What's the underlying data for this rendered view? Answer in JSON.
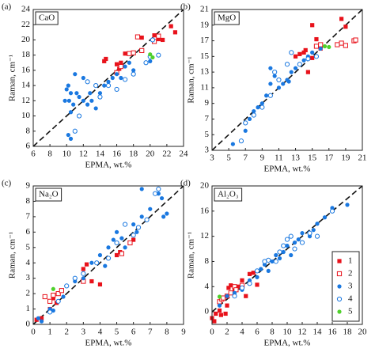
{
  "chart_data": [
    {
      "type": "scatter",
      "panel_label": "(a)",
      "label": "CaO",
      "xlabel": "EPMA, wt.%",
      "ylabel": "Raman, cm⁻¹",
      "xlim": [
        6,
        24
      ],
      "ylim": [
        6,
        24
      ],
      "xticks": [
        6,
        8,
        10,
        12,
        14,
        16,
        18,
        20,
        22,
        24
      ],
      "yticks": [
        6,
        8,
        10,
        12,
        14,
        16,
        18,
        20,
        22,
        24
      ],
      "diagonal": true,
      "series": [
        {
          "color": "#e8121b",
          "marker": "square",
          "filled": true,
          "x": [
            14.5,
            14.7,
            16,
            16.5,
            17,
            19,
            20.5,
            21,
            21.5,
            22.5,
            23,
            16.3
          ],
          "y": [
            17.2,
            17.5,
            16.8,
            17,
            18.2,
            20.3,
            20.6,
            20.1,
            20,
            21.8,
            21,
            16.2
          ]
        },
        {
          "color": "#e8121b",
          "marker": "square",
          "filled": false,
          "x": [
            16,
            17.5,
            18,
            18.5,
            19,
            20.5,
            21,
            16.5
          ],
          "y": [
            15.7,
            18.2,
            18.3,
            20.4,
            18.6,
            19.8,
            20.5,
            16.5
          ]
        },
        {
          "color": "#1a78e0",
          "marker": "circle",
          "filled": true,
          "x": [
            10,
            10.2,
            10.5,
            10.3,
            10.5,
            10.8,
            11,
            11.2,
            11.5,
            12,
            12.5,
            12.8,
            13,
            13.5,
            14,
            14.5,
            15,
            15.5,
            16,
            16.5,
            17,
            17.5,
            18,
            20,
            10.2,
            10.5,
            12,
            9.8
          ],
          "y": [
            13.5,
            14,
            13,
            12,
            10.5,
            11.5,
            15.5,
            13,
            12.5,
            12,
            11.5,
            13,
            12,
            11,
            13,
            14,
            14.5,
            15,
            15.5,
            15,
            16.5,
            17,
            16,
            17.2,
            7.5,
            7,
            15,
            12
          ]
        },
        {
          "color": "#1a78e0",
          "marker": "circle",
          "filled": false,
          "x": [
            11,
            11.5,
            12.5,
            13.5,
            14,
            15,
            16,
            17,
            18,
            19.5,
            20,
            21,
            20.3
          ],
          "y": [
            8,
            10,
            14.5,
            14,
            12.5,
            14,
            13.5,
            14.8,
            15.5,
            17,
            17.8,
            18,
            20
          ]
        },
        {
          "color": "#4fd12c",
          "marker": "circle",
          "filled": true,
          "x": [
            20,
            20.3
          ],
          "y": [
            18.1,
            17.7
          ]
        }
      ]
    },
    {
      "type": "scatter",
      "panel_label": "(b)",
      "label": "MgO",
      "xlabel": "EPMA, wt.%",
      "ylabel": "Raman, cm⁻¹",
      "xlim": [
        3,
        21
      ],
      "ylim": [
        3,
        21
      ],
      "xticks": [
        3,
        5,
        7,
        9,
        11,
        13,
        15,
        17,
        19,
        21
      ],
      "yticks": [
        3,
        5,
        7,
        9,
        11,
        13,
        15,
        17,
        19,
        21
      ],
      "diagonal": true,
      "series": [
        {
          "color": "#e8121b",
          "marker": "square",
          "filled": true,
          "x": [
            13,
            13.5,
            14,
            14.5,
            15,
            15.5,
            15,
            16,
            18.5,
            19,
            14.2
          ],
          "y": [
            15,
            15.3,
            15.5,
            13,
            14.8,
            17.2,
            19,
            16,
            19.8,
            18.8,
            15.8
          ]
        },
        {
          "color": "#e8121b",
          "marker": "square",
          "filled": false,
          "x": [
            15.5,
            16,
            18,
            18.5,
            19,
            20,
            20.2
          ],
          "y": [
            16.3,
            16.5,
            16.5,
            16.7,
            16.4,
            17,
            17.1
          ]
        },
        {
          "color": "#1a78e0",
          "marker": "circle",
          "filled": true,
          "x": [
            5.5,
            7,
            7.5,
            8,
            8.5,
            9,
            9.5,
            10,
            10,
            10.5,
            11,
            11.5,
            12,
            12.2,
            12.5,
            13,
            13.5,
            14,
            14.5,
            15,
            16
          ],
          "y": [
            3.8,
            5.5,
            7,
            8,
            8.5,
            9,
            10,
            11.5,
            13.5,
            12.5,
            11,
            11.5,
            12,
            11.8,
            13,
            13.5,
            14,
            14.5,
            15,
            15.5,
            16
          ]
        },
        {
          "color": "#1a78e0",
          "marker": "circle",
          "filled": false,
          "x": [
            6.5,
            7,
            8,
            9,
            10,
            10.5,
            11,
            12,
            12.5,
            13.5,
            14.5,
            15.5
          ],
          "y": [
            4.2,
            6.5,
            7.5,
            8.5,
            10,
            13,
            12,
            14,
            15.5,
            14,
            14.7,
            15
          ]
        },
        {
          "color": "#4fd12c",
          "marker": "circle",
          "filled": true,
          "x": [
            16.5,
            17
          ],
          "y": [
            16.3,
            16.2
          ]
        }
      ]
    },
    {
      "type": "scatter",
      "panel_label": "(c)",
      "label": "Na₂O",
      "xlabel": "EPMA, wt.%",
      "ylabel": "Raman, cm⁻¹",
      "xlim": [
        0,
        9
      ],
      "ylim": [
        0,
        9
      ],
      "xticks": [
        0,
        1,
        2,
        3,
        4,
        5,
        6,
        7,
        8,
        9
      ],
      "yticks": [
        0,
        1,
        2,
        3,
        4,
        5,
        6,
        7,
        8,
        9
      ],
      "diagonal": true,
      "series": [
        {
          "color": "#e8121b",
          "marker": "square",
          "filled": true,
          "x": [
            0.2,
            0.5,
            1,
            1.2,
            3,
            3.2,
            3.5,
            4,
            5,
            5.2,
            6,
            1.4
          ],
          "y": [
            0.3,
            0.4,
            1,
            1.7,
            3.6,
            3.9,
            2.8,
            2.6,
            4.5,
            4.7,
            5.5,
            1.4
          ]
        },
        {
          "color": "#e8121b",
          "marker": "square",
          "filled": false,
          "x": [
            0.7,
            1,
            1.2,
            1.5,
            1.7,
            3,
            5.3,
            5.8
          ],
          "y": [
            1.8,
            1.5,
            1.9,
            2,
            2.2,
            2.8,
            4.6,
            5.3
          ]
        },
        {
          "color": "#1a78e0",
          "marker": "circle",
          "filled": true,
          "x": [
            0.3,
            0.5,
            1,
            1.2,
            1.8,
            2.5,
            3,
            3.5,
            4,
            4.3,
            4.5,
            4.8,
            5,
            5.3,
            5.5,
            6,
            6.2,
            6.5,
            6.5,
            7,
            7.5,
            7.8,
            8,
            7.7
          ],
          "y": [
            0.4,
            0.2,
            1,
            0.9,
            1.8,
            2.8,
            3,
            4,
            4.5,
            3.8,
            5,
            5.5,
            6,
            5.6,
            5,
            6.5,
            6,
            7,
            8.8,
            7.5,
            8.5,
            7,
            7.2,
            8.2
          ]
        },
        {
          "color": "#1a78e0",
          "marker": "circle",
          "filled": false,
          "x": [
            1,
            1.5,
            2,
            2.5,
            3,
            3.8,
            4.5,
            5,
            5.5,
            6,
            6.3,
            6.8,
            7.5,
            7.3
          ],
          "y": [
            0.8,
            1.5,
            2.5,
            3,
            3.3,
            4,
            4.3,
            5.3,
            6.5,
            5.8,
            6.3,
            6.8,
            8.8,
            8.5
          ]
        },
        {
          "color": "#4fd12c",
          "marker": "circle",
          "filled": true,
          "x": [
            1.2
          ],
          "y": [
            2.3
          ]
        }
      ]
    },
    {
      "type": "scatter",
      "panel_label": "(d)",
      "label": "Al₂O₃",
      "xlabel": "EPMA, wt.%",
      "ylabel": "Raman, cm⁻¹",
      "xlim": [
        0,
        20
      ],
      "ylim": [
        -2,
        20
      ],
      "xticks": [
        0,
        2,
        4,
        6,
        8,
        10,
        12,
        14,
        16,
        18,
        20
      ],
      "yticks": [
        0,
        4,
        8,
        12,
        16,
        20
      ],
      "diagonal": true,
      "legend": "lower right",
      "series": [
        {
          "name": "1",
          "color": "#e8121b",
          "marker": "square",
          "filled": true,
          "x": [
            0,
            0.3,
            0.5,
            1,
            1.2,
            1.8,
            2,
            2.2,
            2.5,
            3,
            3.5,
            4,
            4.5,
            5,
            6,
            5.5
          ],
          "y": [
            -1,
            -1.5,
            -0.3,
            0.2,
            -0.5,
            -0.3,
            1,
            3.8,
            4.2,
            3.5,
            4,
            5,
            2.5,
            6,
            4.3,
            6.2
          ]
        },
        {
          "name": "2",
          "color": "#e8121b",
          "marker": "square",
          "filled": false,
          "x": [
            1,
            1.3,
            1.5,
            2,
            2.5,
            3,
            3.2,
            4
          ],
          "y": [
            1.6,
            2,
            2.2,
            2.5,
            3,
            4,
            3.5,
            4.2
          ]
        },
        {
          "name": "3",
          "color": "#1a78e0",
          "marker": "circle",
          "filled": true,
          "x": [
            1,
            2,
            3,
            4,
            5,
            6,
            6.5,
            7,
            7.5,
            8,
            8.5,
            9,
            9.5,
            10,
            10.5,
            11,
            11.5,
            12,
            13,
            13.5,
            14,
            15,
            16,
            18
          ],
          "y": [
            1,
            2.5,
            3,
            3.5,
            5,
            5.5,
            6.8,
            7.5,
            6.5,
            8,
            9,
            8.5,
            9.5,
            10.5,
            9,
            11,
            11.5,
            12.5,
            12,
            13,
            14,
            15,
            16.5,
            17
          ]
        },
        {
          "name": "4",
          "color": "#1a78e0",
          "marker": "circle",
          "filled": false,
          "x": [
            3,
            4,
            5,
            6,
            7,
            7.5,
            8.5,
            9,
            9.5,
            10,
            10.5,
            11,
            12,
            13,
            14,
            16
          ],
          "y": [
            2.5,
            3.8,
            4.5,
            6.5,
            8,
            8.2,
            8,
            9.5,
            10.5,
            11.5,
            12,
            10,
            11,
            12.5,
            12,
            16
          ]
        },
        {
          "name": "5",
          "color": "#4fd12c",
          "marker": "circle",
          "filled": true,
          "x": [
            1
          ],
          "y": [
            2.4
          ]
        }
      ]
    }
  ]
}
